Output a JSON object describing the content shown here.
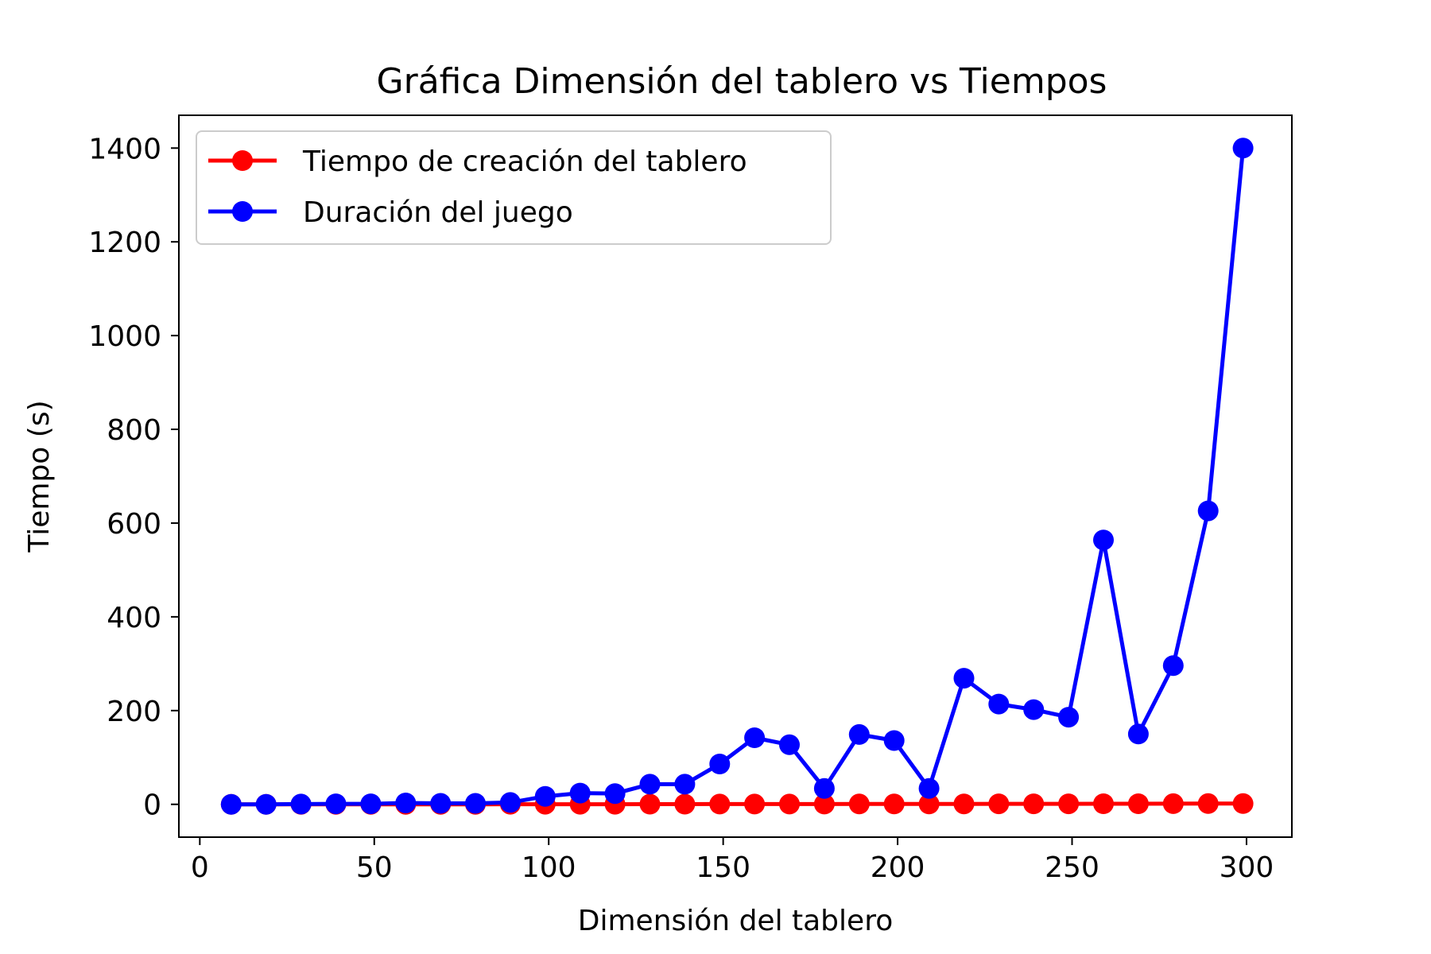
{
  "chart_data": {
    "type": "line",
    "title": "Gráfica Dimensión del tablero vs Tiempos",
    "xlabel": "Dimensión del tablero",
    "ylabel": "Tiempo (s)",
    "xlim": [
      -6,
      313
    ],
    "ylim": [
      -70,
      1470
    ],
    "xticks": [
      0,
      50,
      100,
      150,
      200,
      250,
      300
    ],
    "yticks": [
      0,
      200,
      400,
      600,
      800,
      1000,
      1200,
      1400
    ],
    "grid": false,
    "legend_position": "top-left",
    "x": [
      9,
      19,
      29,
      39,
      49,
      59,
      69,
      79,
      89,
      99,
      109,
      119,
      129,
      139,
      149,
      159,
      169,
      179,
      189,
      199,
      209,
      219,
      229,
      239,
      249,
      259,
      269,
      279,
      289,
      299
    ],
    "series": [
      {
        "name": "Tiempo de creación del tablero",
        "color": "#ff0000",
        "values": [
          0,
          0,
          0,
          0,
          0,
          0.1,
          0.1,
          0.1,
          0.2,
          0.2,
          0.3,
          0.3,
          0.4,
          0.4,
          0.5,
          0.5,
          0.6,
          0.6,
          0.7,
          0.8,
          0.8,
          0.9,
          1.0,
          1.0,
          1.1,
          1.2,
          1.3,
          1.4,
          1.5,
          1.6
        ]
      },
      {
        "name": "Duración del juego",
        "color": "#0000ff",
        "values": [
          0,
          0,
          0.5,
          1,
          1,
          3,
          2,
          2,
          4,
          17,
          24,
          23,
          43,
          43,
          86,
          142,
          127,
          34,
          149,
          136,
          34,
          269,
          214,
          202,
          186,
          564,
          150,
          296,
          626,
          1400
        ]
      }
    ]
  }
}
